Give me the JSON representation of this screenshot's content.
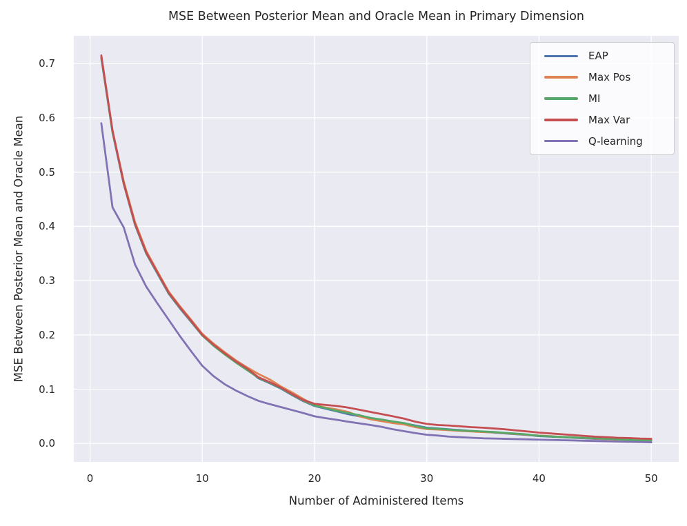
{
  "chart_data": {
    "type": "line",
    "title": "MSE Between Posterior Mean and Oracle Mean in Primary Dimension",
    "xlabel": "Number of Administered Items",
    "ylabel": "MSE Between Posterior Mean and Oracle Mean",
    "xlim": [
      -1.45,
      52.45
    ],
    "ylim": [
      -0.034,
      0.751
    ],
    "grid": true,
    "legend_position": "upper right",
    "xticks": [
      {
        "v": 0,
        "label": "0"
      },
      {
        "v": 10,
        "label": "10"
      },
      {
        "v": 20,
        "label": "20"
      },
      {
        "v": 30,
        "label": "30"
      },
      {
        "v": 40,
        "label": "40"
      },
      {
        "v": 50,
        "label": "50"
      }
    ],
    "yticks": [
      {
        "v": 0.0,
        "label": "0.0"
      },
      {
        "v": 0.1,
        "label": "0.1"
      },
      {
        "v": 0.2,
        "label": "0.2"
      },
      {
        "v": 0.3,
        "label": "0.3"
      },
      {
        "v": 0.4,
        "label": "0.4"
      },
      {
        "v": 0.5,
        "label": "0.5"
      },
      {
        "v": 0.6,
        "label": "0.6"
      },
      {
        "v": 0.7,
        "label": "0.7"
      }
    ],
    "x": [
      1,
      2,
      3,
      4,
      5,
      6,
      7,
      8,
      9,
      10,
      11,
      12,
      13,
      14,
      15,
      16,
      17,
      18,
      19,
      20,
      21,
      22,
      23,
      24,
      25,
      26,
      27,
      28,
      29,
      30,
      31,
      32,
      33,
      34,
      35,
      36,
      37,
      38,
      39,
      40,
      41,
      42,
      43,
      44,
      45,
      46,
      47,
      48,
      49,
      50
    ],
    "series": [
      {
        "name": "EAP",
        "color": "#4C72B0",
        "values": [
          0.71,
          0.573,
          0.478,
          0.403,
          0.35,
          0.313,
          0.276,
          0.249,
          0.224,
          0.199,
          0.181,
          0.165,
          0.15,
          0.137,
          0.12,
          0.111,
          0.101,
          0.089,
          0.078,
          0.069,
          0.064,
          0.059,
          0.054,
          0.05,
          0.046,
          0.043,
          0.04,
          0.037,
          0.033,
          0.029,
          0.0275,
          0.026,
          0.0245,
          0.023,
          0.0215,
          0.02,
          0.0185,
          0.017,
          0.0155,
          0.0135,
          0.0125,
          0.0115,
          0.0105,
          0.0095,
          0.0085,
          0.008,
          0.0075,
          0.007,
          0.0065,
          0.006
        ]
      },
      {
        "name": "Max Pos",
        "color": "#DD8452",
        "values": [
          0.712,
          0.576,
          0.483,
          0.408,
          0.355,
          0.317,
          0.28,
          0.253,
          0.228,
          0.202,
          0.184,
          0.168,
          0.153,
          0.14,
          0.128,
          0.118,
          0.105,
          0.094,
          0.082,
          0.071,
          0.066,
          0.0625,
          0.058,
          0.05,
          0.0445,
          0.041,
          0.0375,
          0.035,
          0.03,
          0.0265,
          0.0255,
          0.0245,
          0.023,
          0.022,
          0.021,
          0.0205,
          0.019,
          0.0175,
          0.016,
          0.0145,
          0.0135,
          0.012,
          0.011,
          0.01,
          0.009,
          0.008,
          0.007,
          0.0065,
          0.006,
          0.0055
        ]
      },
      {
        "name": "MI",
        "color": "#55A868",
        "values": [
          0.713,
          0.574,
          0.48,
          0.404,
          0.351,
          0.314,
          0.277,
          0.25,
          0.225,
          0.199,
          0.18,
          0.164,
          0.149,
          0.135,
          0.121,
          0.112,
          0.102,
          0.09,
          0.079,
          0.07,
          0.065,
          0.06,
          0.056,
          0.052,
          0.047,
          0.044,
          0.0405,
          0.0375,
          0.032,
          0.028,
          0.027,
          0.0255,
          0.024,
          0.023,
          0.022,
          0.021,
          0.0195,
          0.018,
          0.0165,
          0.014,
          0.013,
          0.012,
          0.0112,
          0.0103,
          0.0095,
          0.0085,
          0.0075,
          0.0065,
          0.0055,
          0.005
        ]
      },
      {
        "name": "Max Var",
        "color": "#C44E52",
        "values": [
          0.715,
          0.577,
          0.479,
          0.405,
          0.352,
          0.315,
          0.278,
          0.251,
          0.226,
          0.2,
          0.182,
          0.166,
          0.151,
          0.138,
          0.122,
          0.113,
          0.103,
          0.091,
          0.08,
          0.073,
          0.071,
          0.069,
          0.066,
          0.062,
          0.058,
          0.054,
          0.05,
          0.0455,
          0.04,
          0.036,
          0.034,
          0.033,
          0.0315,
          0.03,
          0.029,
          0.0275,
          0.026,
          0.024,
          0.022,
          0.02,
          0.0185,
          0.017,
          0.0155,
          0.014,
          0.0125,
          0.0115,
          0.0105,
          0.01,
          0.009,
          0.0085
        ]
      },
      {
        "name": "Q-learning",
        "color": "#8172B3",
        "values": [
          0.59,
          0.435,
          0.398,
          0.33,
          0.289,
          0.258,
          0.228,
          0.198,
          0.17,
          0.143,
          0.124,
          0.109,
          0.0975,
          0.0875,
          0.0785,
          0.0725,
          0.067,
          0.0615,
          0.056,
          0.05,
          0.0465,
          0.0435,
          0.04,
          0.037,
          0.034,
          0.0305,
          0.026,
          0.0225,
          0.019,
          0.016,
          0.0145,
          0.0125,
          0.0115,
          0.0105,
          0.0095,
          0.009,
          0.0085,
          0.008,
          0.0075,
          0.007,
          0.0065,
          0.006,
          0.0055,
          0.005,
          0.0045,
          0.004,
          0.0035,
          0.003,
          0.0025,
          0.002
        ]
      }
    ]
  },
  "colors": {
    "figure_bg": "#FFFFFF",
    "plot_bg": "#EAEAF2",
    "grid": "#FFFFFF",
    "text": "#262626",
    "legend_bg": "rgba(255,255,255,0.8)",
    "legend_border": "#CCCCCC"
  }
}
